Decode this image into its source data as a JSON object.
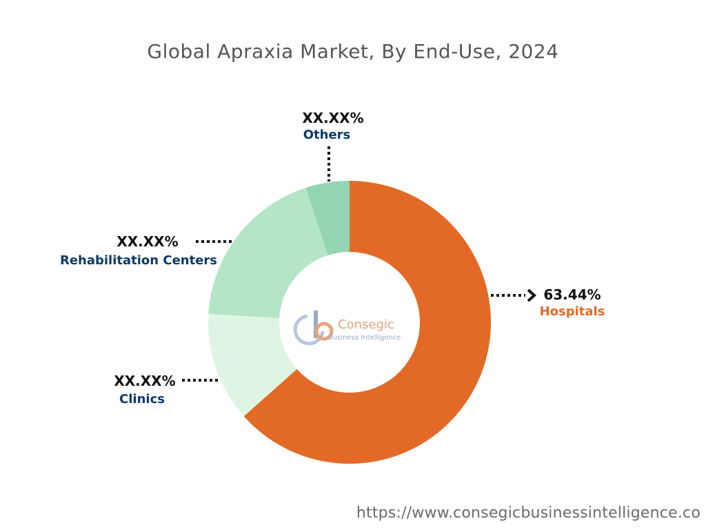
{
  "title": "Global Apraxia Market, By End-Use, 2024",
  "watermark": {
    "name": "Consegic",
    "subtitle": "Business Intelligence",
    "colors": {
      "primary": "#e8a47a",
      "secondary": "#9aa9c8"
    }
  },
  "source_url": "https://www.consegicbusinessintelligence.co",
  "chart_data": {
    "type": "pie",
    "donut": true,
    "title": "Global Apraxia Market, By End-Use, 2024",
    "slices": [
      {
        "label": "Hospitals",
        "value": 63.44,
        "value_label": "63.44%",
        "color": "#e36a26",
        "label_color": "#e36a26"
      },
      {
        "label": "Clinics",
        "value": 12.5,
        "value_label": "XX.XX%",
        "color": "#dff5e3",
        "label_color": "#0b3a6b"
      },
      {
        "label": "Rehabilitation Centers",
        "value": 19.06,
        "value_label": "XX.XX%",
        "color": "#b5e5c7",
        "label_color": "#0b3a6b"
      },
      {
        "label": "Others",
        "value": 5.0,
        "value_label": "XX.XX%",
        "color": "#93d5b2",
        "label_color": "#0b3a6b"
      }
    ]
  }
}
